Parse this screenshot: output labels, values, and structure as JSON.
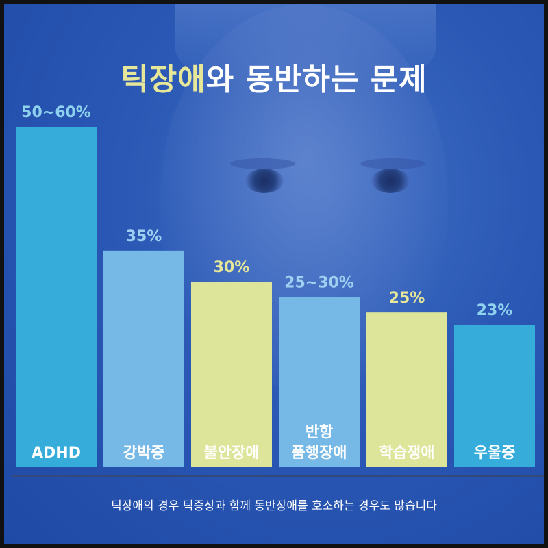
{
  "title": {
    "highlight": "틱장애",
    "rest": "와 동반하는 문제"
  },
  "footer": "틱장애의 경우 틱증상과 함께 동반장애를 호소하는 경우도 많습니다",
  "colors": {
    "blue": "#35acd9",
    "lightblue": "#76b8e6",
    "yellow": "#dde59b",
    "highlight": "#e7e79a"
  },
  "chart_data": {
    "type": "bar",
    "title": "틱장애와 동반하는 문제",
    "categories": [
      "ADHD",
      "강박증",
      "불안장애",
      "반항\n품행장애",
      "학습쟁애",
      "우울증"
    ],
    "value_labels": [
      "50~60%",
      "35%",
      "30%",
      "25~30%",
      "25%",
      "23%"
    ],
    "values": [
      55,
      35,
      30,
      27.5,
      25,
      23
    ],
    "bar_colors": [
      "#35acd9",
      "#76b8e6",
      "#dde59b",
      "#76b8e6",
      "#dde59b",
      "#35acd9"
    ],
    "label_colors": [
      "#8fd2ee",
      "#9fd0f2",
      "#e7e79a",
      "#9fd0f2",
      "#e7e79a",
      "#8fd2ee"
    ],
    "ylim": [
      0,
      60
    ],
    "grid": false
  }
}
